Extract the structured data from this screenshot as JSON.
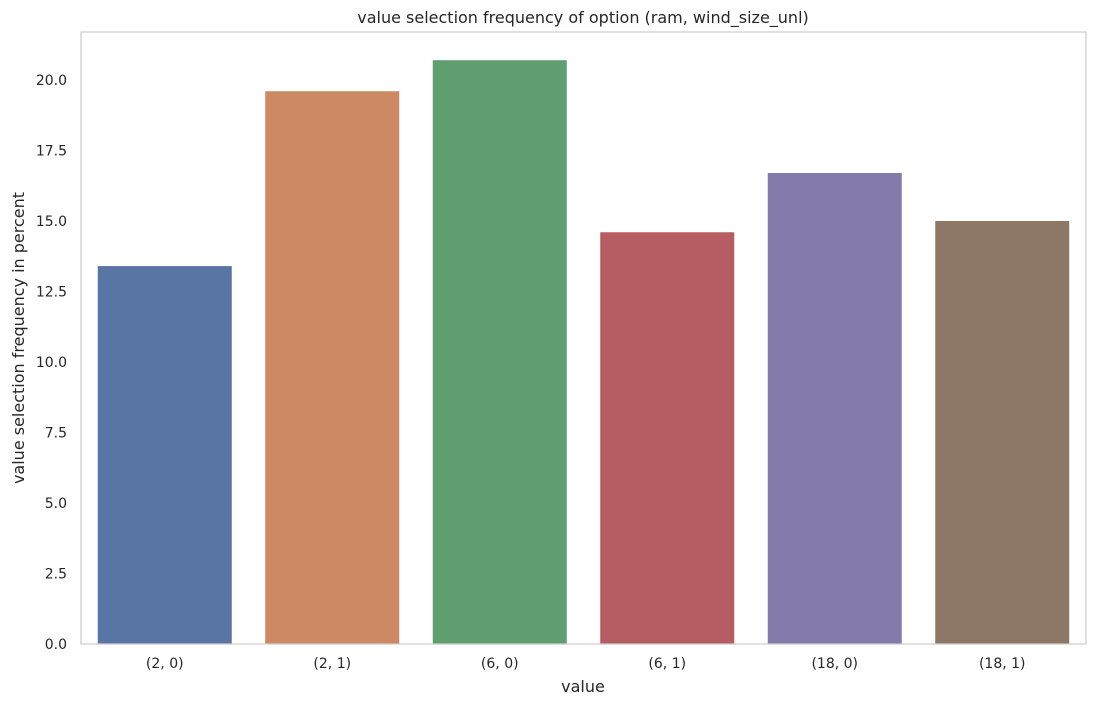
{
  "chart_data": {
    "type": "bar",
    "title": "value selection frequency of option (ram, wind_size_unl)",
    "xlabel": "value",
    "ylabel": "value selection frequency in percent",
    "categories": [
      "(2, 0)",
      "(2, 1)",
      "(6, 0)",
      "(6, 1)",
      "(18, 0)",
      "(18, 1)"
    ],
    "values": [
      13.4,
      19.6,
      20.7,
      14.6,
      16.7,
      15.0
    ],
    "colors": [
      "#5875a4",
      "#cc8963",
      "#5f9e6e",
      "#b55d60",
      "#857aab",
      "#8d7866"
    ],
    "ylim": [
      0,
      21.7
    ],
    "yticks": [
      "0.0",
      "2.5",
      "5.0",
      "7.5",
      "10.0",
      "12.5",
      "15.0",
      "17.5",
      "20.0"
    ],
    "grid": false,
    "legend": "none"
  }
}
